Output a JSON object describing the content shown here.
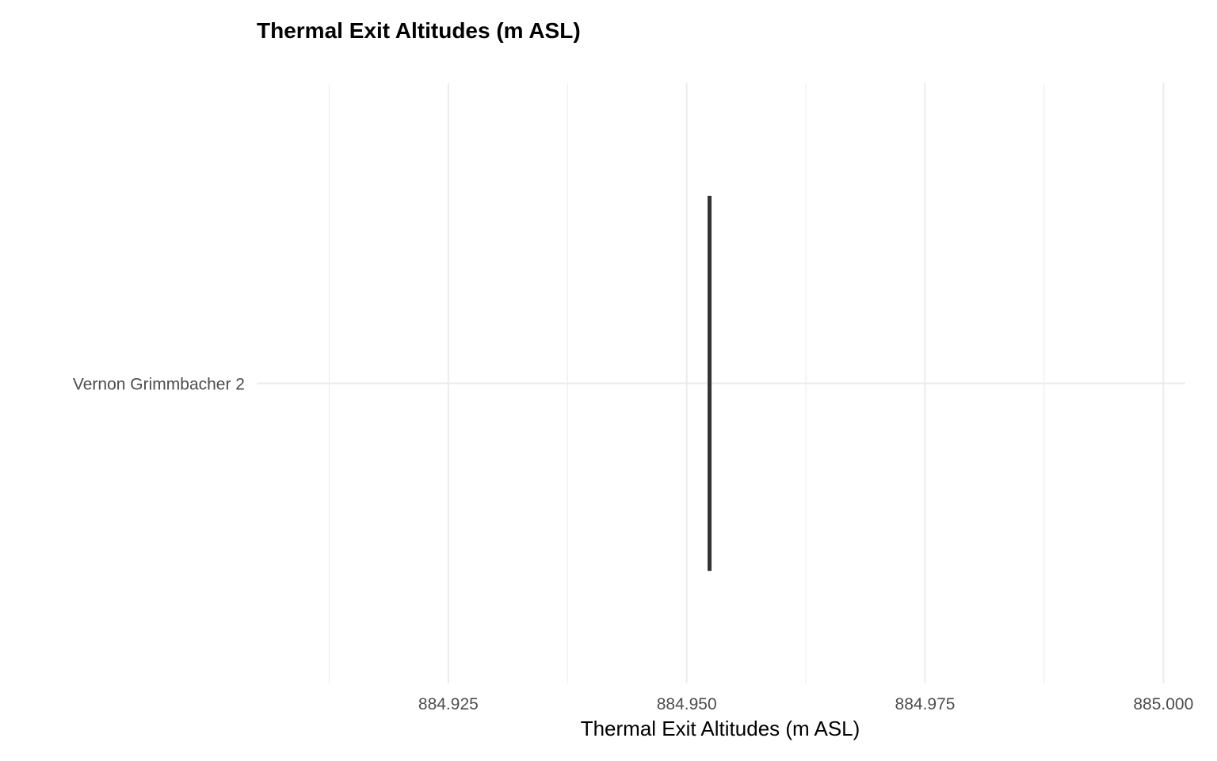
{
  "chart_data": {
    "type": "boxplot",
    "title": "Thermal Exit Altitudes (m ASL)",
    "xlabel": "Thermal Exit Altitudes (m ASL)",
    "ylabel": "",
    "categories": [
      "Vernon Grimmbacher 2"
    ],
    "values": [
      884.9524
    ],
    "xlim": [
      884.9049,
      885.0023
    ],
    "x_ticks": [
      884.925,
      884.95,
      884.975,
      885.0
    ],
    "x_tick_labels": [
      "884.925",
      "884.950",
      "884.975",
      "885.000"
    ],
    "grid": true,
    "legend": "none",
    "colors": {
      "grid": "#ebebeb",
      "mark": "#333333",
      "tick_label": "#4d4d4d",
      "text": "#000000"
    }
  }
}
